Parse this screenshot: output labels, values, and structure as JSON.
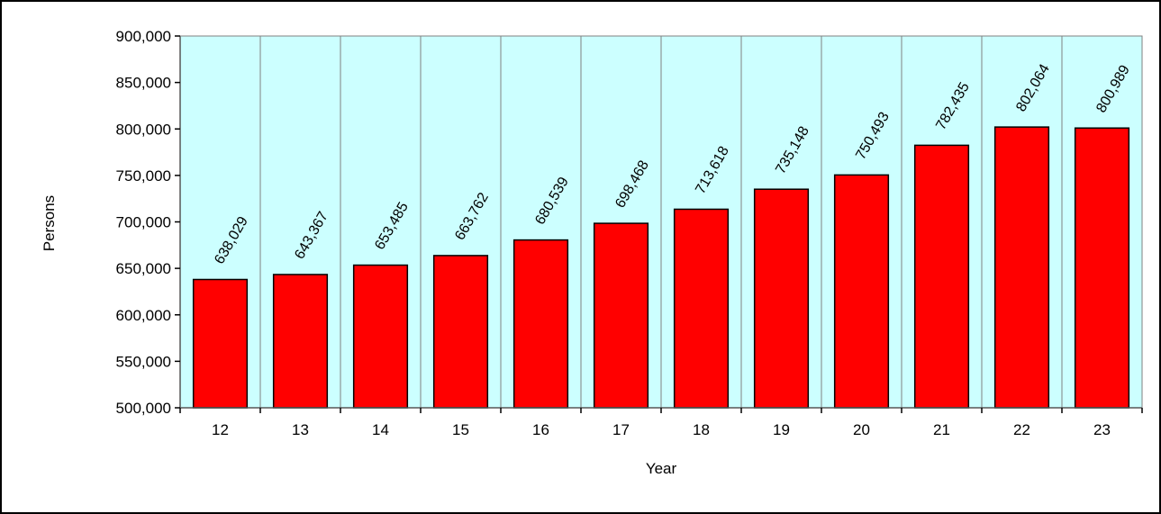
{
  "chart_data": {
    "type": "bar",
    "title": "",
    "xlabel": "Year",
    "ylabel": "Persons",
    "categories": [
      "12",
      "13",
      "14",
      "15",
      "16",
      "17",
      "18",
      "19",
      "20",
      "21",
      "22",
      "23"
    ],
    "values": [
      638029,
      643367,
      653485,
      663762,
      680539,
      698468,
      713618,
      735148,
      750493,
      782435,
      802064,
      800989
    ],
    "data_labels": [
      "638,029",
      "643,367",
      "653,485",
      "663,762",
      "680,539",
      "698,468",
      "713,618",
      "735,148",
      "750,493",
      "782,435",
      "802,064",
      "800,989"
    ],
    "ylim": [
      500000,
      900000
    ],
    "yticks": [
      500000,
      550000,
      600000,
      650000,
      700000,
      750000,
      800000,
      850000,
      900000
    ],
    "ytick_labels": [
      "500,000",
      "550,000",
      "600,000",
      "650,000",
      "700,000",
      "750,000",
      "800,000",
      "850,000",
      "900,000"
    ],
    "grid": "vertical category dividers",
    "legend": "none",
    "colors": {
      "plot_background": "#ccffff",
      "bar_fill": "#ff0000",
      "bar_stroke": "#000000",
      "gridline": "#808080"
    }
  }
}
